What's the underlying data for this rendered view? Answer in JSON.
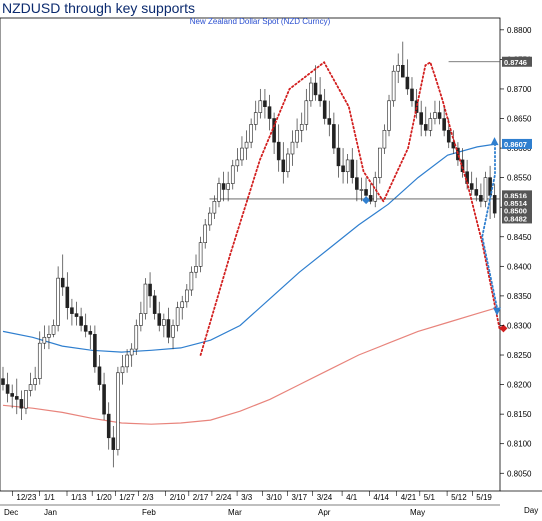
{
  "chart_data": {
    "type": "candlestick",
    "title": "NZDUSD through key supports",
    "subtitle": "New Zealand Dollar Spot (NZD Curncy)",
    "ylim": [
      0.802,
      0.882
    ],
    "y_ticks": [
      0.805,
      0.81,
      0.815,
      0.82,
      0.825,
      0.83,
      0.835,
      0.84,
      0.845,
      0.85,
      0.855,
      0.86,
      0.865,
      0.87,
      0.875,
      0.88
    ],
    "y_tick_labels": [
      "0.8050",
      "0.8100",
      "0.8150",
      "0.8200",
      "0.8250",
      "0.8300",
      "0.8350",
      "0.8400",
      "0.8450",
      "0.8500",
      "0.8550",
      "0.8600",
      "0.8650",
      "0.8700",
      "0.8750",
      "0.8800"
    ],
    "x_tick_labels": [
      "12/23",
      "1/1",
      "1/13",
      "1/20",
      "1/27",
      "2/3",
      "2/10",
      "2/17",
      "2/24",
      "3/3",
      "3/10",
      "3/17",
      "3/24",
      "4/1",
      "4/14",
      "4/21",
      "5/1",
      "5/12",
      "5/19"
    ],
    "x_month_labels": [
      "Dec",
      "Jan",
      "Feb",
      "Mar",
      "Apr",
      "May"
    ],
    "x_axis_end_label": "Day",
    "price_flags": [
      {
        "label": "0.8746",
        "value": 0.8746,
        "color": "#555555"
      },
      {
        "label": "0.8607",
        "value": 0.8607,
        "color": "#2f7fcf"
      },
      {
        "label": "0.8516",
        "value": 0.852,
        "color": "#555555"
      },
      {
        "label": "0.8514",
        "value": 0.8507,
        "color": "#555555"
      },
      {
        "label": "0.8500",
        "value": 0.8494,
        "color": "#555555"
      },
      {
        "label": "0.8482",
        "value": 0.8481,
        "color": "#555555"
      }
    ],
    "horizontal_lines": [
      {
        "name": "double-top-high",
        "value": 0.8746,
        "x_start": 0.902
      },
      {
        "name": "neckline-support",
        "value": 0.8514,
        "x_start": 0.418
      }
    ],
    "series": [
      {
        "type": "ohlc",
        "x": [
          0.0,
          0.0093,
          0.0186,
          0.0279,
          0.0372,
          0.0465,
          0.0558,
          0.0651,
          0.0744,
          0.0837,
          0.093,
          0.1023,
          0.1116,
          0.1209,
          0.1302,
          0.1395,
          0.1488,
          0.1581,
          0.1674,
          0.1767,
          0.186,
          0.1953,
          0.2046,
          0.214,
          0.2233,
          0.2326,
          0.2419,
          0.2512,
          0.2605,
          0.2698,
          0.2791,
          0.2884,
          0.2977,
          0.307,
          0.3163,
          0.3256,
          0.3349,
          0.3442,
          0.3535,
          0.3628,
          0.3721,
          0.3814,
          0.3907,
          0.4,
          0.4093,
          0.4186,
          0.4279,
          0.4372,
          0.4465,
          0.4558,
          0.4651,
          0.4744,
          0.4837,
          0.493,
          0.5023,
          0.5116,
          0.5209,
          0.5302,
          0.5395,
          0.5488,
          0.5581,
          0.5674,
          0.5767,
          0.586,
          0.5953,
          0.6047,
          0.614,
          0.6233,
          0.6326,
          0.6419,
          0.6512,
          0.6605,
          0.6698,
          0.6791,
          0.6884,
          0.6977,
          0.707,
          0.7163,
          0.7256,
          0.7349,
          0.7442,
          0.7535,
          0.7628,
          0.7721,
          0.7814,
          0.7907,
          0.8,
          0.8093,
          0.8186,
          0.8279,
          0.8372,
          0.8465,
          0.8558,
          0.8651,
          0.8744,
          0.8837,
          0.893,
          0.9023,
          0.9116,
          0.9209,
          0.9302,
          0.9395,
          0.9488,
          0.9581,
          0.9674,
          0.9767,
          0.986,
          0.9953
        ],
        "open": [
          0.821,
          0.82,
          0.8185,
          0.818,
          0.8175,
          0.816,
          0.819,
          0.82,
          0.821,
          0.827,
          0.828,
          0.8285,
          0.83,
          0.838,
          0.8365,
          0.833,
          0.832,
          0.8315,
          0.83,
          0.829,
          0.8285,
          0.823,
          0.82,
          0.815,
          0.811,
          0.809,
          0.822,
          0.823,
          0.825,
          0.826,
          0.83,
          0.832,
          0.837,
          0.835,
          0.832,
          0.83,
          0.831,
          0.828,
          0.83,
          0.833,
          0.834,
          0.836,
          0.839,
          0.84,
          0.844,
          0.847,
          0.849,
          0.851,
          0.854,
          0.853,
          0.854,
          0.857,
          0.858,
          0.86,
          0.861,
          0.864,
          0.866,
          0.868,
          0.867,
          0.865,
          0.861,
          0.858,
          0.856,
          0.859,
          0.861,
          0.863,
          0.864,
          0.868,
          0.871,
          0.869,
          0.868,
          0.865,
          0.864,
          0.86,
          0.857,
          0.856,
          0.858,
          0.855,
          0.853,
          0.853,
          0.852,
          0.851,
          0.855,
          0.86,
          0.863,
          0.868,
          0.873,
          0.874,
          0.872,
          0.87,
          0.868,
          0.866,
          0.864,
          0.863,
          0.865,
          0.866,
          0.865,
          0.863,
          0.861,
          0.86,
          0.858,
          0.856,
          0.854,
          0.853,
          0.852,
          0.851,
          0.855,
          0.852
        ],
        "high": [
          0.823,
          0.822,
          0.82,
          0.821,
          0.819,
          0.819,
          0.822,
          0.823,
          0.829,
          0.83,
          0.83,
          0.831,
          0.84,
          0.842,
          0.839,
          0.8345,
          0.834,
          0.833,
          0.832,
          0.83,
          0.83,
          0.825,
          0.822,
          0.817,
          0.813,
          0.823,
          0.825,
          0.826,
          0.827,
          0.831,
          0.834,
          0.838,
          0.839,
          0.836,
          0.834,
          0.832,
          0.833,
          0.831,
          0.834,
          0.835,
          0.837,
          0.84,
          0.842,
          0.845,
          0.848,
          0.85,
          0.852,
          0.855,
          0.856,
          0.856,
          0.858,
          0.86,
          0.862,
          0.863,
          0.865,
          0.868,
          0.87,
          0.87,
          0.869,
          0.866,
          0.864,
          0.861,
          0.86,
          0.863,
          0.865,
          0.866,
          0.87,
          0.872,
          0.874,
          0.872,
          0.87,
          0.868,
          0.866,
          0.864,
          0.86,
          0.859,
          0.86,
          0.858,
          0.855,
          0.855,
          0.854,
          0.856,
          0.86,
          0.864,
          0.869,
          0.874,
          0.876,
          0.878,
          0.875,
          0.872,
          0.87,
          0.868,
          0.867,
          0.866,
          0.868,
          0.868,
          0.867,
          0.865,
          0.863,
          0.861,
          0.86,
          0.858,
          0.856,
          0.855,
          0.854,
          0.856,
          0.857,
          0.854
        ],
        "low": [
          0.819,
          0.817,
          0.816,
          0.815,
          0.814,
          0.815,
          0.818,
          0.819,
          0.82,
          0.826,
          0.826,
          0.828,
          0.829,
          0.835,
          0.831,
          0.83,
          0.83,
          0.829,
          0.828,
          0.826,
          0.822,
          0.819,
          0.814,
          0.809,
          0.806,
          0.808,
          0.82,
          0.822,
          0.823,
          0.825,
          0.829,
          0.831,
          0.833,
          0.831,
          0.829,
          0.828,
          0.827,
          0.826,
          0.829,
          0.831,
          0.833,
          0.835,
          0.838,
          0.839,
          0.843,
          0.846,
          0.848,
          0.85,
          0.851,
          0.851,
          0.853,
          0.856,
          0.857,
          0.858,
          0.86,
          0.863,
          0.865,
          0.865,
          0.863,
          0.859,
          0.856,
          0.854,
          0.855,
          0.857,
          0.86,
          0.861,
          0.863,
          0.867,
          0.868,
          0.867,
          0.864,
          0.862,
          0.859,
          0.855,
          0.854,
          0.854,
          0.854,
          0.851,
          0.851,
          0.851,
          0.8505,
          0.85,
          0.854,
          0.859,
          0.862,
          0.867,
          0.871,
          0.872,
          0.869,
          0.867,
          0.865,
          0.862,
          0.862,
          0.862,
          0.864,
          0.864,
          0.862,
          0.86,
          0.859,
          0.857,
          0.855,
          0.853,
          0.852,
          0.851,
          0.85,
          0.85,
          0.848,
          0.8482
        ],
        "close": [
          0.82,
          0.8185,
          0.818,
          0.8175,
          0.816,
          0.819,
          0.82,
          0.821,
          0.827,
          0.828,
          0.8285,
          0.83,
          0.838,
          0.8365,
          0.833,
          0.832,
          0.8315,
          0.83,
          0.829,
          0.8285,
          0.823,
          0.82,
          0.815,
          0.811,
          0.809,
          0.822,
          0.823,
          0.825,
          0.826,
          0.83,
          0.832,
          0.837,
          0.835,
          0.832,
          0.83,
          0.831,
          0.828,
          0.83,
          0.833,
          0.834,
          0.836,
          0.839,
          0.84,
          0.844,
          0.847,
          0.849,
          0.851,
          0.854,
          0.853,
          0.854,
          0.857,
          0.858,
          0.86,
          0.861,
          0.864,
          0.866,
          0.868,
          0.867,
          0.865,
          0.861,
          0.858,
          0.856,
          0.859,
          0.861,
          0.863,
          0.864,
          0.868,
          0.871,
          0.869,
          0.868,
          0.865,
          0.864,
          0.86,
          0.857,
          0.856,
          0.858,
          0.855,
          0.853,
          0.853,
          0.852,
          0.851,
          0.855,
          0.86,
          0.863,
          0.868,
          0.873,
          0.874,
          0.872,
          0.87,
          0.868,
          0.866,
          0.864,
          0.863,
          0.865,
          0.866,
          0.865,
          0.863,
          0.861,
          0.86,
          0.858,
          0.856,
          0.854,
          0.853,
          0.852,
          0.851,
          0.855,
          0.852,
          0.849
        ]
      },
      {
        "type": "line",
        "color": "#2f7fcf",
        "x": [
          0.0,
          0.06,
          0.12,
          0.18,
          0.24,
          0.3,
          0.36,
          0.42,
          0.48,
          0.54,
          0.6,
          0.66,
          0.72,
          0.78,
          0.84,
          0.9,
          0.96,
          1.0
        ],
        "values": [
          0.829,
          0.828,
          0.8265,
          0.8258,
          0.8255,
          0.8258,
          0.8262,
          0.8275,
          0.83,
          0.8345,
          0.839,
          0.843,
          0.847,
          0.8505,
          0.855,
          0.8588,
          0.8602,
          0.8607
        ]
      },
      {
        "type": "line",
        "color": "#e8847c",
        "x": [
          0.0,
          0.06,
          0.12,
          0.18,
          0.24,
          0.3,
          0.36,
          0.42,
          0.48,
          0.54,
          0.6,
          0.66,
          0.72,
          0.78,
          0.84,
          0.9,
          0.96,
          1.0
        ],
        "values": [
          0.8165,
          0.816,
          0.8153,
          0.8143,
          0.8135,
          0.8133,
          0.8135,
          0.814,
          0.8155,
          0.8175,
          0.82,
          0.8225,
          0.825,
          0.827,
          0.829,
          0.8305,
          0.832,
          0.833
        ]
      }
    ],
    "annotations": [
      {
        "type": "dotted-curve",
        "color": "#d21f1f",
        "x": [
          0.4,
          0.46,
          0.52,
          0.58,
          0.65,
          0.7,
          0.73,
          0.77,
          0.82,
          0.855,
          0.865,
          0.875,
          0.89,
          0.91,
          0.94,
          0.97,
          1.005
        ],
        "values": [
          0.825,
          0.842,
          0.858,
          0.87,
          0.8745,
          0.867,
          0.856,
          0.851,
          0.86,
          0.874,
          0.8745,
          0.872,
          0.868,
          0.862,
          0.854,
          0.844,
          0.8295
        ]
      },
      {
        "type": "dotted-arrow",
        "color": "#2f7fcf",
        "x": [
          0.996,
          0.996,
          0.97,
          1.0
        ],
        "values": [
          0.8607,
          0.8555,
          0.845,
          0.833
        ]
      }
    ],
    "markers": [
      {
        "type": "diamond",
        "color": "#2f7fcf",
        "x": 0.735,
        "value": 0.8512
      },
      {
        "type": "triangle-up",
        "color": "#2f7fcf",
        "x": 0.995,
        "value": 0.861
      },
      {
        "type": "triangle-down",
        "color": "#2f7fcf",
        "x": 1.0,
        "value": 0.8325
      },
      {
        "type": "diamond",
        "color": "#d21f1f",
        "x": 1.013,
        "value": 0.8295
      }
    ],
    "grid": false,
    "legend": "none"
  }
}
